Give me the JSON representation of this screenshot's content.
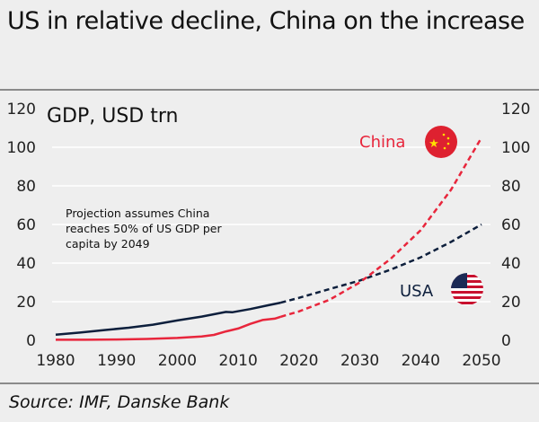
{
  "chart_data": {
    "type": "line",
    "title": "US in relative decline, China on the increase",
    "ylabel": "GDP, USD trn",
    "xlabel": "",
    "xlim": [
      1980,
      2050
    ],
    "ylim": [
      0,
      120
    ],
    "xticks": [
      "1980",
      "1990",
      "2000",
      "2010",
      "2020",
      "2030",
      "2040",
      "2050"
    ],
    "yticks": [
      "0",
      "20",
      "40",
      "60",
      "80",
      "100",
      "120"
    ],
    "grid": true,
    "annotation": [
      "Projection assumes China",
      "reaches 50% of US GDP per",
      "capita by 2049"
    ],
    "source": "Source: IMF, Danske Bank",
    "series": [
      {
        "name": "USA",
        "color": "#0d1f3c",
        "x": [
          1980,
          1984,
          1988,
          1992,
          1996,
          2000,
          2004,
          2008,
          2009,
          2012,
          2015,
          2017
        ],
        "y": [
          2.9,
          4.0,
          5.3,
          6.5,
          8.1,
          10.3,
          12.3,
          14.7,
          14.5,
          16.2,
          18.2,
          19.5
        ],
        "projection_x": [
          2017,
          2020,
          2025,
          2030,
          2035,
          2040,
          2045,
          2050
        ],
        "projection_y": [
          19.5,
          22,
          26.5,
          31,
          36.5,
          43,
          51,
          60
        ]
      },
      {
        "name": "China",
        "color": "#e8263c",
        "x": [
          1980,
          1985,
          1990,
          1995,
          2000,
          2004,
          2006,
          2008,
          2010,
          2012,
          2014,
          2016,
          2017
        ],
        "y": [
          0.3,
          0.3,
          0.4,
          0.7,
          1.2,
          2.0,
          2.8,
          4.6,
          6.1,
          8.5,
          10.5,
          11.2,
          12.2
        ],
        "projection_x": [
          2017,
          2020,
          2025,
          2030,
          2035,
          2040,
          2045,
          2050
        ],
        "projection_y": [
          12.2,
          15,
          21,
          30,
          42,
          57,
          78,
          105
        ]
      }
    ]
  }
}
